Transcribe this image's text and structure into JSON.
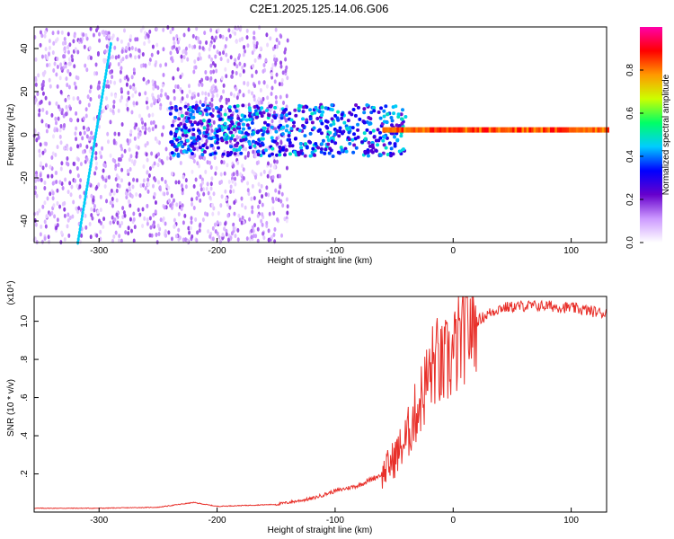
{
  "chart_data": [
    {
      "type": "heatmap",
      "title": "C2E1.2025.125.14.06.G06",
      "xlabel": "Height of straight line (km)",
      "ylabel": "Frequency (Hz)",
      "xlim": [
        -355,
        130
      ],
      "ylim": [
        -50,
        50
      ],
      "xticks": [
        -300,
        -200,
        -100,
        0,
        100
      ],
      "yticks": [
        -40,
        -20,
        0,
        20,
        40
      ],
      "colorbar": {
        "label": "Normalized spectral amplitude",
        "range": [
          0,
          1
        ],
        "ticks": [
          0.0,
          0.2,
          0.4,
          0.6,
          0.8
        ],
        "colors": [
          "#ffffff",
          "#cc99ff",
          "#6600cc",
          "#0000ff",
          "#00ccff",
          "#00ff66",
          "#ccff00",
          "#ff9900",
          "#ff0000",
          "#ff00aa"
        ]
      },
      "features": [
        {
          "name": "dominant_tone",
          "x_range": [
            -60,
            130
          ],
          "frequency": 2,
          "amplitude": 0.9
        },
        {
          "name": "diagonal_trace",
          "x_start": -318,
          "y_start": -50,
          "x_end": -290,
          "y_end": 42,
          "amplitude": 0.45
        },
        {
          "name": "noise_region",
          "x_range": [
            -355,
            -140
          ],
          "frequency_range": [
            -50,
            50
          ],
          "amplitude": 0.15
        }
      ]
    },
    {
      "type": "line",
      "xlabel": "Height of straight line (km)",
      "ylabel": "SNR (10 * v/v)",
      "yscale_note": "(x10⁴)",
      "xlim": [
        -355,
        130
      ],
      "ylim": [
        0,
        1.13
      ],
      "xticks": [
        -300,
        -200,
        -100,
        0,
        100
      ],
      "yticks": [
        0.2,
        0.4,
        0.6,
        0.8,
        1.0
      ],
      "color": "#e8302a",
      "series": [
        {
          "x": [
            -355,
            -300,
            -250,
            -220,
            -200,
            -150,
            -120,
            -100,
            -80,
            -60,
            -50,
            -40,
            -30,
            -20,
            -15,
            -10,
            0,
            10,
            20,
            30,
            40,
            60,
            80,
            100,
            110,
            130
          ],
          "values": [
            0.02,
            0.02,
            0.025,
            0.05,
            0.03,
            0.04,
            0.07,
            0.11,
            0.14,
            0.2,
            0.28,
            0.38,
            0.55,
            0.72,
            0.8,
            0.75,
            0.82,
            0.95,
            1.0,
            1.04,
            1.07,
            1.08,
            1.08,
            1.07,
            1.06,
            1.04
          ]
        }
      ]
    }
  ]
}
